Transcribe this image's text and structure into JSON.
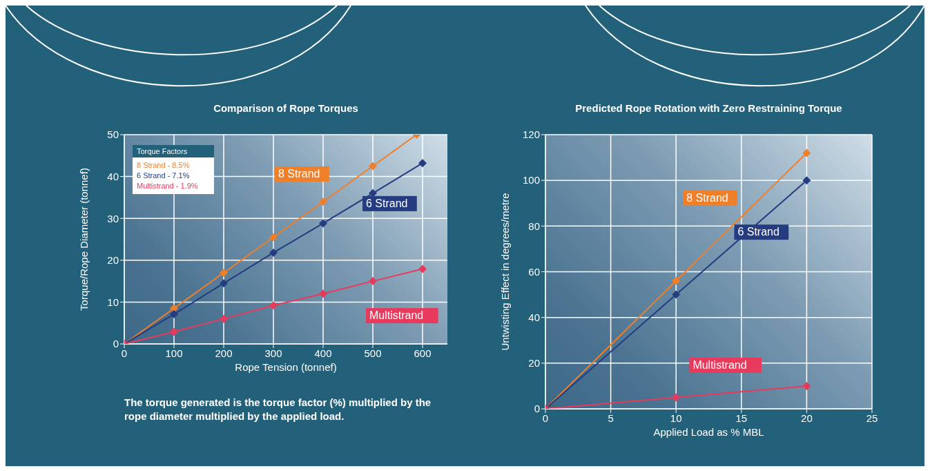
{
  "chart_data": [
    {
      "type": "line",
      "title": "Comparison of Rope Torques",
      "xlabel": "Rope Tension (tonnef)",
      "ylabel": "Torque/Rope Diameter (tonnef)",
      "series": [
        {
          "name": "8 Strand",
          "color": "#f07f2a",
          "x": [
            0,
            100,
            200,
            300,
            400,
            500,
            588
          ],
          "values": [
            0,
            8.5,
            17,
            25.5,
            34,
            42.5,
            50
          ]
        },
        {
          "name": "6 Strand",
          "color": "#263c80",
          "x": [
            0,
            100,
            200,
            300,
            400,
            500,
            600
          ],
          "values": [
            0,
            7.1,
            14.5,
            21.8,
            28.8,
            36,
            43.2
          ]
        },
        {
          "name": "Multistrand",
          "color": "#e83a5c",
          "x": [
            0,
            100,
            200,
            300,
            400,
            500,
            600
          ],
          "values": [
            0,
            2.9,
            6,
            9.2,
            12,
            15,
            17.9
          ]
        }
      ],
      "xlim": [
        0,
        650
      ],
      "xticks": [
        0,
        100,
        200,
        300,
        400,
        500,
        600
      ],
      "ylim": [
        0,
        50
      ],
      "yticks": [
        0,
        10,
        20,
        30,
        40,
        50
      ],
      "grid": true,
      "marker": "diamond",
      "line_style": "solid",
      "annotations": [
        "Torque Factors",
        "8 Strand - 8.5%",
        "6 Strand - 7.1%",
        "Multistrand - 1.9%",
        "The torque generated is the torque factor (%) multiplied by the rope diameter multiplied by the applied load."
      ]
    },
    {
      "type": "line",
      "title": "Predicted Rope Rotation with Zero Restraining Torque",
      "xlabel": "Applied Load as % MBL",
      "ylabel": "Untwisting Effect in degrees/metre",
      "series": [
        {
          "name": "8 Strand",
          "color": "#f07f2a",
          "x": [
            0,
            10,
            20
          ],
          "values": [
            0,
            56,
            112
          ]
        },
        {
          "name": "6 Strand",
          "color": "#263c80",
          "x": [
            0,
            10,
            20
          ],
          "values": [
            0,
            50,
            100
          ]
        },
        {
          "name": "Multistrand",
          "color": "#e83a5c",
          "x": [
            0,
            10,
            20
          ],
          "values": [
            0,
            5,
            10
          ]
        }
      ],
      "xlim": [
        0,
        25
      ],
      "xticks": [
        0,
        5,
        10,
        15,
        20,
        25
      ],
      "ylim": [
        0,
        120
      ],
      "yticks": [
        0,
        20,
        40,
        60,
        80,
        100,
        120
      ],
      "grid": true,
      "marker": "diamond",
      "line_style": "solid"
    }
  ]
}
